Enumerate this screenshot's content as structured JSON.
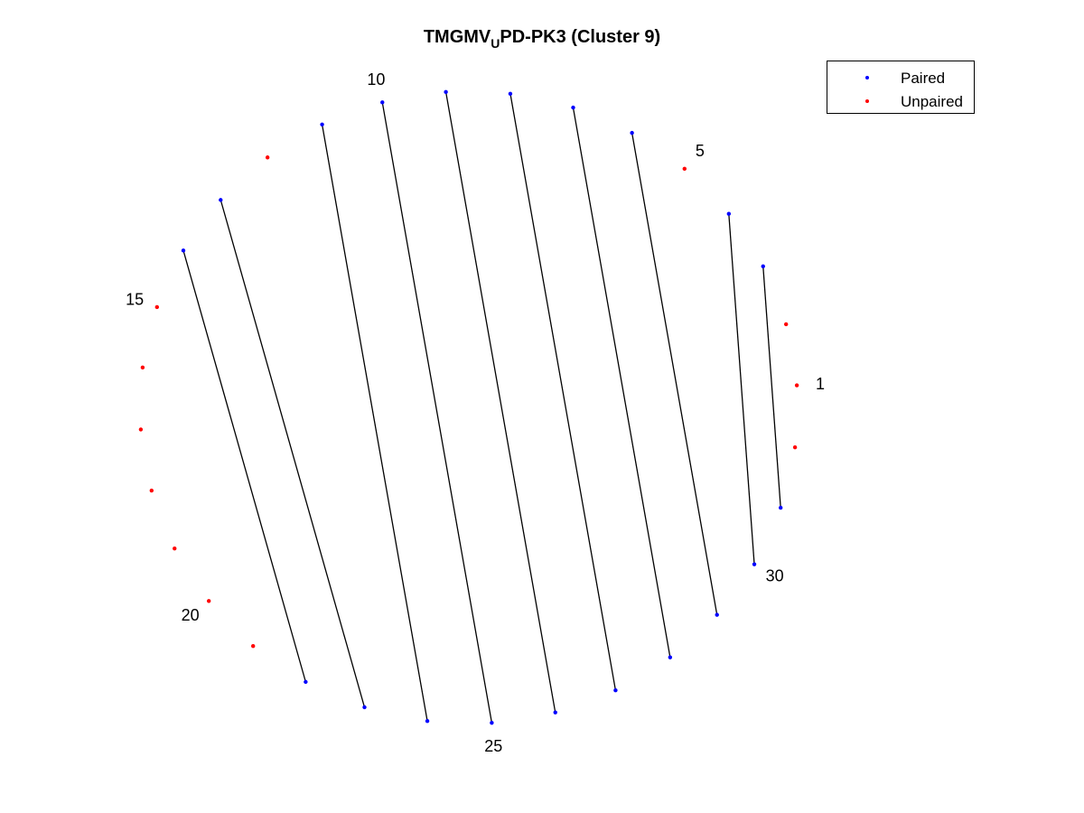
{
  "title": {
    "main": "TMGMV",
    "sub": "U",
    "rest": "PD-PK3 (Cluster 9)"
  },
  "legend": {
    "entries": [
      {
        "label": "Paired",
        "color": "#0000ff"
      },
      {
        "label": "Unpaired",
        "color": "#ff0000"
      }
    ]
  },
  "colors": {
    "paired": "#0000ff",
    "unpaired": "#ff0000",
    "bond": "#000000"
  },
  "chart_data": {
    "type": "arc-diagram",
    "layout": "circular",
    "n_positions": 32,
    "labeled_positions": [
      "1",
      "5",
      "10",
      "15",
      "20",
      "25",
      "30"
    ],
    "pairs": [
      [
        3,
        31
      ],
      [
        4,
        30
      ],
      [
        6,
        29
      ],
      [
        7,
        28
      ],
      [
        8,
        27
      ],
      [
        9,
        26
      ],
      [
        10,
        25
      ],
      [
        11,
        24
      ],
      [
        13,
        23
      ],
      [
        14,
        22
      ]
    ],
    "unpaired": [
      1,
      2,
      5,
      12,
      15,
      16,
      17,
      18,
      19,
      20,
      21,
      32
    ]
  }
}
